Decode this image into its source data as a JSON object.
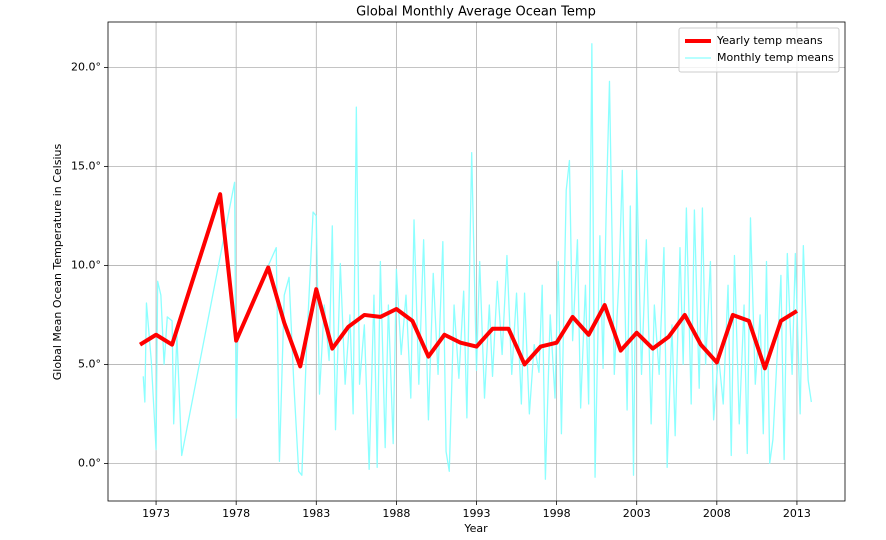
{
  "chart_data": {
    "type": "line",
    "title": "Global Monthly Average Ocean Temp",
    "xlabel": "Year",
    "ylabel": "Global Mean Ocean Temperature in Celsius",
    "xlim": [
      1970,
      2016
    ],
    "ylim": [
      -1.9,
      22.3
    ],
    "xticks": [
      1973,
      1978,
      1983,
      1988,
      1993,
      1998,
      2003,
      2008,
      2013
    ],
    "yticks": [
      {
        "value": 0,
        "label": "0.0°"
      },
      {
        "value": 5,
        "label": "5.0°"
      },
      {
        "value": 10,
        "label": "10.0°"
      },
      {
        "value": 15,
        "label": "15.0°"
      },
      {
        "value": 20,
        "label": "20.0°"
      }
    ],
    "grid": true,
    "legend": "upper right",
    "series": [
      {
        "name": "Yearly temp means",
        "color": "#ff0000",
        "x": [
          1972,
          1973,
          1974,
          1977,
          1978,
          1980,
          1981,
          1982,
          1983,
          1984,
          1985,
          1986,
          1987,
          1988,
          1989,
          1990,
          1991,
          1992,
          1993,
          1994,
          1995,
          1996,
          1997,
          1998,
          1999,
          2000,
          2001,
          2002,
          2003,
          2004,
          2005,
          2006,
          2007,
          2008,
          2009,
          2010,
          2011,
          2012,
          2013
        ],
        "values": [
          6.0,
          6.5,
          6.0,
          13.6,
          6.2,
          9.9,
          7.1,
          4.9,
          8.8,
          5.8,
          6.9,
          7.5,
          7.4,
          7.8,
          7.2,
          5.4,
          6.5,
          6.1,
          5.9,
          6.8,
          6.8,
          5.0,
          5.9,
          6.1,
          7.4,
          6.5,
          8.0,
          5.7,
          6.6,
          5.8,
          6.4,
          7.5,
          6.0,
          5.1,
          7.5,
          7.2,
          4.8,
          7.2,
          7.7
        ]
      },
      {
        "name": "Monthly temp means",
        "color": "#80ffff",
        "x": [
          1972.2,
          1972.3,
          1972.4,
          1972.7,
          1973.0,
          1973.1,
          1973.3,
          1973.5,
          1973.7,
          1974.0,
          1974.1,
          1974.3,
          1974.6,
          1977.9,
          1978.0,
          1978.1,
          1980.5,
          1980.7,
          1981.0,
          1981.3,
          1981.6,
          1981.9,
          1982.1,
          1982.4,
          1982.8,
          1983.0,
          1983.2,
          1983.5,
          1983.8,
          1984.0,
          1984.2,
          1984.5,
          1984.8,
          1985.1,
          1985.3,
          1985.5,
          1985.7,
          1986.0,
          1986.3,
          1986.6,
          1986.8,
          1987.0,
          1987.3,
          1987.5,
          1987.8,
          1988.0,
          1988.3,
          1988.6,
          1988.9,
          1989.1,
          1989.4,
          1989.7,
          1990.0,
          1990.3,
          1990.6,
          1990.9,
          1991.1,
          1991.3,
          1991.6,
          1991.9,
          1992.2,
          1992.4,
          1992.7,
          1993.0,
          1993.2,
          1993.5,
          1993.8,
          1994.0,
          1994.3,
          1994.6,
          1994.9,
          1995.2,
          1995.5,
          1995.8,
          1996.0,
          1996.3,
          1996.6,
          1996.9,
          1997.1,
          1997.3,
          1997.6,
          1997.9,
          1998.1,
          1998.3,
          1998.6,
          1998.8,
          1999.0,
          1999.3,
          1999.5,
          1999.8,
          2000.0,
          2000.2,
          2000.4,
          2000.7,
          2000.9,
          2001.1,
          2001.3,
          2001.6,
          2001.9,
          2002.1,
          2002.4,
          2002.6,
          2002.8,
          2003.0,
          2003.3,
          2003.6,
          2003.9,
          2004.1,
          2004.4,
          2004.7,
          2004.9,
          2005.2,
          2005.4,
          2005.7,
          2005.9,
          2006.1,
          2006.4,
          2006.6,
          2006.9,
          2007.1,
          2007.3,
          2007.6,
          2007.8,
          2008.1,
          2008.4,
          2008.7,
          2008.9,
          2009.1,
          2009.4,
          2009.7,
          2009.9,
          2010.1,
          2010.4,
          2010.7,
          2010.9,
          2011.1,
          2011.3,
          2011.5,
          2011.8,
          2012.0,
          2012.2,
          2012.4,
          2012.7,
          2012.9,
          2013.2,
          2013.4,
          2013.7,
          2013.9
        ],
        "values": [
          4.4,
          3.1,
          8.1,
          5.2,
          0.7,
          9.2,
          8.5,
          5.0,
          7.4,
          7.2,
          2.0,
          6.5,
          0.4,
          14.2,
          2.3,
          6.5,
          10.9,
          0.1,
          8.5,
          9.4,
          4.0,
          -0.4,
          -0.6,
          6.0,
          12.7,
          12.5,
          3.5,
          8.0,
          5.2,
          12.0,
          1.7,
          10.1,
          4.0,
          7.5,
          2.5,
          18.0,
          4.0,
          7.0,
          -0.3,
          8.5,
          -0.2,
          10.2,
          0.8,
          8.0,
          1.0,
          9.8,
          5.5,
          8.5,
          3.3,
          12.3,
          4.0,
          11.3,
          2.2,
          9.6,
          4.5,
          11.2,
          0.6,
          -0.4,
          8.0,
          4.3,
          8.7,
          2.3,
          15.7,
          4.7,
          10.2,
          3.3,
          8.0,
          4.4,
          9.2,
          5.5,
          10.5,
          4.5,
          8.6,
          3.0,
          8.6,
          2.5,
          6.0,
          4.6,
          9.0,
          -0.8,
          7.5,
          3.3,
          10.2,
          1.5,
          13.8,
          15.3,
          6.2,
          11.3,
          2.8,
          9.0,
          3.0,
          21.2,
          -0.7,
          11.5,
          4.8,
          13.0,
          19.3,
          4.5,
          9.5,
          14.8,
          2.7,
          13.0,
          -0.6,
          14.8,
          4.5,
          11.3,
          2.0,
          8.0,
          4.5,
          10.9,
          -0.2,
          7.0,
          1.4,
          10.9,
          5.0,
          12.9,
          3.0,
          12.8,
          3.8,
          12.9,
          5.0,
          10.2,
          2.2,
          5.5,
          3.0,
          9.0,
          0.4,
          10.5,
          2.0,
          8.0,
          0.5,
          12.4,
          4.0,
          7.5,
          1.5,
          10.2,
          0.0,
          1.2,
          6.0,
          9.5,
          0.2,
          10.6,
          4.5,
          10.6,
          2.5,
          11.0,
          4.2,
          3.1
        ]
      }
    ]
  }
}
